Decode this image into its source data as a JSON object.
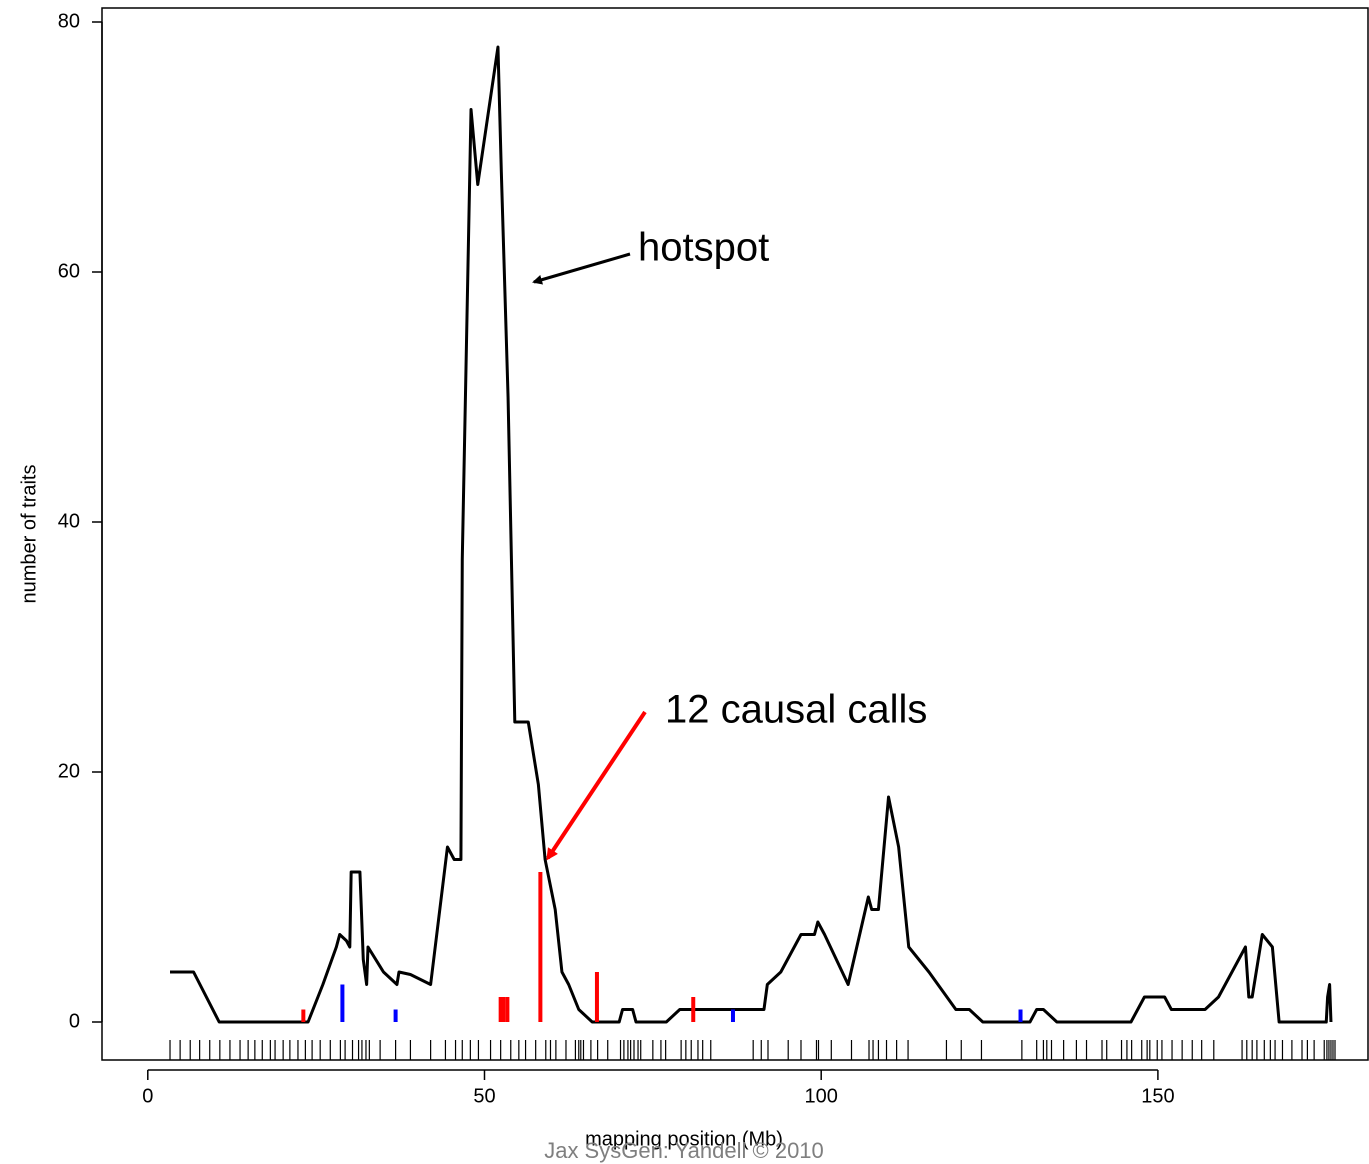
{
  "chart_data": {
    "type": "line",
    "xlabel": "mapping position (Mb)",
    "ylabel": "number of traits",
    "footer": "Jax SysGen: Yandell © 2010",
    "xlim": [
      -6.8,
      181.2
    ],
    "ylim": [
      -3.04,
      81.12
    ],
    "xticks": [
      0,
      50,
      100,
      150
    ],
    "yticks": [
      0,
      20,
      40,
      60,
      80
    ],
    "series": [
      {
        "color": "#000000",
        "x": [
          3.3,
          6.8,
          10.6,
          23.8,
          26,
          28,
          28.5,
          29.5,
          30,
          30.2,
          31.5,
          32,
          32.5,
          32.7,
          35,
          37,
          37.3,
          39,
          42,
          44.5,
          45.5,
          46.5,
          46.7,
          48,
          49,
          52,
          52.5,
          53.5,
          54.5,
          56.5,
          58,
          59,
          60.5,
          61.5,
          62.5,
          64,
          66,
          70,
          70.5,
          72,
          72.5,
          77,
          79,
          91.5,
          92,
          94,
          97,
          99,
          99.5,
          100.5,
          104,
          107,
          107.5,
          108.5,
          110,
          111.5,
          113,
          116,
          120,
          122,
          124,
          131,
          132,
          133,
          135,
          146,
          148,
          151,
          152,
          157,
          159,
          163,
          163.5,
          164,
          165.5,
          167,
          168,
          175,
          175.2,
          175.5,
          175.7
        ],
        "values": [
          4,
          4,
          0,
          0,
          3,
          6,
          7,
          6.5,
          6,
          12,
          12,
          5,
          3,
          6,
          4,
          3,
          4,
          3.8,
          3,
          14,
          13,
          13,
          37,
          73,
          67,
          78,
          68,
          50,
          24,
          24,
          19,
          13,
          9,
          4,
          3,
          1,
          0,
          0,
          1,
          1,
          0,
          0,
          1,
          1,
          3,
          4,
          7,
          7,
          8,
          7,
          3,
          10,
          9,
          9,
          18,
          14,
          6,
          4,
          1,
          1,
          0,
          0,
          1,
          1,
          0,
          0,
          2,
          2,
          1,
          1,
          2,
          6,
          2,
          2,
          7,
          6,
          0,
          0,
          2,
          3,
          0
        ]
      },
      {
        "color": "#ff0000",
        "x": [
          23.1,
          52.4,
          52.8,
          53.4,
          58.3,
          66.7,
          81.0
        ],
        "values": [
          1,
          2,
          2,
          2,
          12,
          4,
          2
        ]
      },
      {
        "color": "#0000ff",
        "x": [
          28.9,
          36.8,
          86.9,
          129.6
        ],
        "values": [
          3,
          1,
          1,
          1
        ]
      }
    ],
    "markers": [
      3.3,
      4.8,
      6.3,
      7.7,
      9.2,
      10.7,
      12.2,
      13.7,
      14.9,
      15.9,
      17.0,
      18.2,
      18.9,
      20.1,
      21.1,
      22.3,
      23.4,
      24.4,
      25.6,
      27.1,
      28.6,
      29.3,
      30.4,
      31.3,
      31.8,
      32.4,
      32.9,
      34.5,
      36.8,
      39.0,
      42.0,
      44.2,
      45.7,
      46.7,
      47.9,
      49.1,
      50.9,
      52.4,
      53.9,
      55.1,
      56.1,
      57.6,
      59.1,
      59.8,
      60.6,
      62.1,
      63.5,
      64.0,
      64.3,
      64.7,
      65.8,
      66.8,
      68.3,
      70.2,
      70.7,
      71.3,
      71.7,
      72.2,
      72.8,
      73.2,
      75.0,
      76.2,
      76.9,
      79.2,
      79.9,
      80.7,
      81.7,
      82.4,
      83.6,
      89.9,
      91.1,
      92.1,
      95.1,
      97.0,
      99.3,
      99.6,
      101.5,
      104.5,
      107.1,
      107.7,
      108.5,
      109.7,
      111.2,
      112.9,
      118.6,
      120.8,
      123.8,
      129.8,
      132.0,
      133.0,
      133.5,
      134.2,
      136.0,
      137.9,
      139.4,
      141.7,
      142.4,
      144.6,
      145.4,
      146.1,
      147.6,
      148.4,
      148.8,
      149.9,
      150.6,
      152.1,
      153.6,
      155.1,
      156.5,
      158.3,
      162.5,
      163.2,
      164.0,
      164.7,
      165.8,
      166.7,
      167.4,
      168.5,
      169.9,
      171.4,
      172.2,
      173.2,
      174.7,
      175.1,
      175.4,
      175.7,
      176.0,
      176.3
    ],
    "annotations": [
      "hotspot",
      "12 causal calls"
    ]
  }
}
